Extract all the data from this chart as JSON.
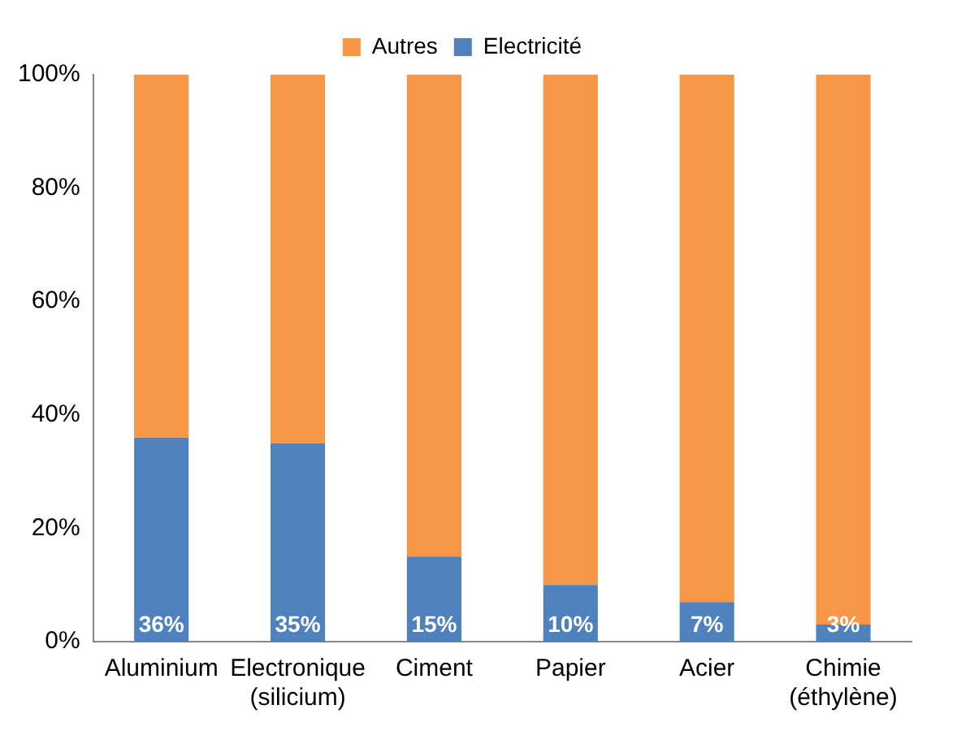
{
  "chart_data": {
    "type": "bar",
    "stacked": true,
    "categories": [
      "Aluminium",
      "Electronique (silicium)",
      "Ciment",
      "Papier",
      "Acier",
      "Chimie (éthylène)"
    ],
    "series": [
      {
        "name": "Electricité",
        "color": "#4f81bd",
        "values": [
          36,
          35,
          15,
          10,
          7,
          3
        ],
        "value_labels": [
          "36%",
          "35%",
          "15%",
          "10%",
          "7%",
          "3%"
        ]
      },
      {
        "name": "Autres",
        "color": "#f79646",
        "values": [
          64,
          65,
          85,
          90,
          93,
          97
        ]
      }
    ],
    "ylim": [
      0,
      100
    ],
    "yticks": [
      {
        "value": 0,
        "label": "0%"
      },
      {
        "value": 20,
        "label": "20%"
      },
      {
        "value": 40,
        "label": "40%"
      },
      {
        "value": 60,
        "label": "60%"
      },
      {
        "value": 80,
        "label": "80%"
      },
      {
        "value": 100,
        "label": "100%"
      }
    ],
    "grid": false,
    "legend": "top"
  }
}
